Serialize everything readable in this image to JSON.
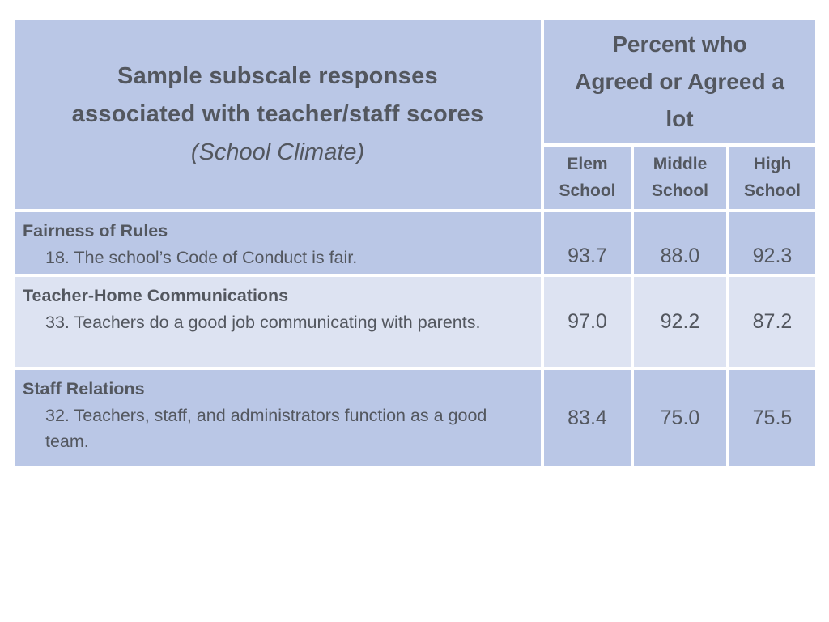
{
  "table": {
    "header": {
      "title_lines": [
        "Sample subscale responses",
        "associated with teacher/staff scores"
      ],
      "title_subtitle": "(School Climate)",
      "value_group_label": "Percent who Agreed or Agreed a lot",
      "columns": [
        "Elem School",
        "Middle School",
        "High School"
      ]
    },
    "rows": [
      {
        "category": "Fairness of Rules",
        "item": "18. The school’s Code of Conduct is fair.",
        "values": [
          "93.7",
          "88.0",
          "92.3"
        ]
      },
      {
        "category": "Teacher-Home Communications",
        "item": "33. Teachers do a good job communicating with parents.",
        "values": [
          "97.0",
          "92.2",
          "87.2"
        ]
      },
      {
        "category": "Staff Relations",
        "item": "32. Teachers, staff, and administrators function as a good team.",
        "values": [
          "83.4",
          "75.0",
          "75.5"
        ]
      }
    ],
    "colors": {
      "cell_blue": "#bac7e6",
      "cell_light": "#dde3f2",
      "text": "#53575f",
      "gap": "#ffffff"
    }
  }
}
